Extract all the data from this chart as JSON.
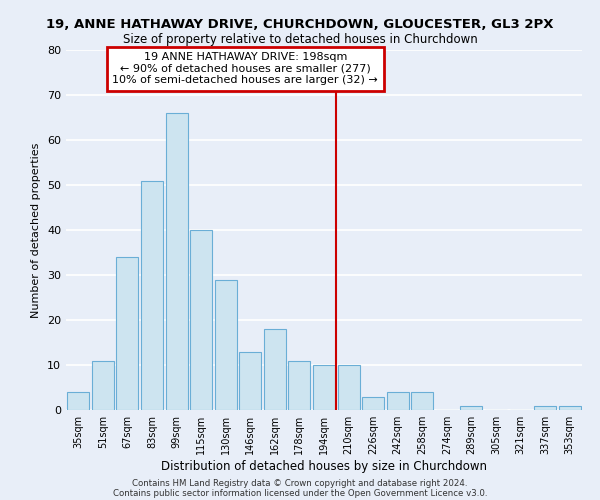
{
  "title": "19, ANNE HATHAWAY DRIVE, CHURCHDOWN, GLOUCESTER, GL3 2PX",
  "subtitle": "Size of property relative to detached houses in Churchdown",
  "xlabel": "Distribution of detached houses by size in Churchdown",
  "ylabel": "Number of detached properties",
  "bar_labels": [
    "35sqm",
    "51sqm",
    "67sqm",
    "83sqm",
    "99sqm",
    "115sqm",
    "130sqm",
    "146sqm",
    "162sqm",
    "178sqm",
    "194sqm",
    "210sqm",
    "226sqm",
    "242sqm",
    "258sqm",
    "274sqm",
    "289sqm",
    "305sqm",
    "321sqm",
    "337sqm",
    "353sqm"
  ],
  "bar_values": [
    4,
    11,
    34,
    51,
    66,
    40,
    29,
    13,
    18,
    11,
    10,
    10,
    3,
    4,
    4,
    0,
    1,
    0,
    0,
    1,
    1
  ],
  "bar_color": "#cde4f0",
  "bar_edge_color": "#6aaed6",
  "ylim": [
    0,
    80
  ],
  "yticks": [
    0,
    10,
    20,
    30,
    40,
    50,
    60,
    70,
    80
  ],
  "vline_x": 10.5,
  "vline_color": "#cc0000",
  "annotation_title": "19 ANNE HATHAWAY DRIVE: 198sqm",
  "annotation_line1": "← 90% of detached houses are smaller (277)",
  "annotation_line2": "10% of semi-detached houses are larger (32) →",
  "annotation_box_color": "#ffffff",
  "annotation_box_edge": "#cc0000",
  "footer1": "Contains HM Land Registry data © Crown copyright and database right 2024.",
  "footer2": "Contains public sector information licensed under the Open Government Licence v3.0.",
  "background_color": "#e8eef8",
  "grid_color": "#ffffff"
}
